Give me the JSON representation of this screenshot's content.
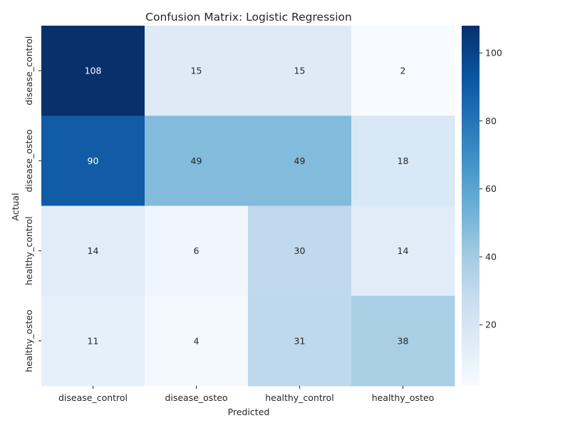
{
  "chart_data": {
    "type": "heatmap",
    "title": "Confusion Matrix: Logistic Regression",
    "xlabel": "Predicted",
    "ylabel": "Actual",
    "x_categories": [
      "disease_control",
      "disease_osteo",
      "healthy_control",
      "healthy_osteo"
    ],
    "y_categories": [
      "disease_control",
      "disease_osteo",
      "healthy_control",
      "healthy_osteo"
    ],
    "values": [
      [
        108,
        15,
        15,
        2
      ],
      [
        90,
        49,
        49,
        18
      ],
      [
        14,
        6,
        30,
        14
      ],
      [
        11,
        4,
        31,
        38
      ]
    ],
    "colormap": "Blues",
    "colorbar": {
      "range": [
        2,
        108
      ],
      "ticks": [
        20,
        40,
        60,
        80,
        100
      ]
    },
    "annotate": true
  }
}
